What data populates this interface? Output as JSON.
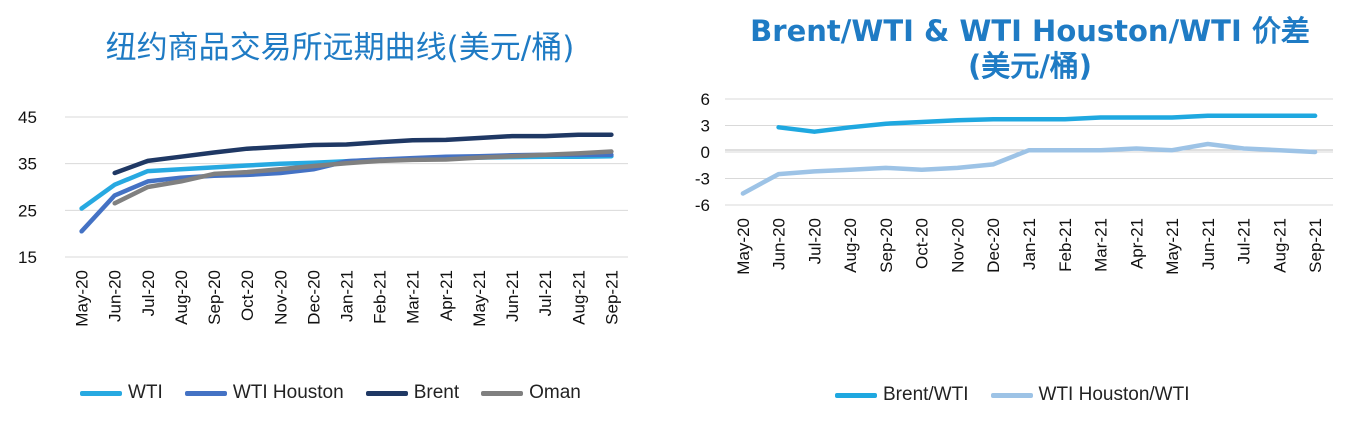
{
  "charts": {
    "left": {
      "title": "纽约商品交易所远期曲线(美元/桶)"
    },
    "right": {
      "title": "Brent/WTI & WTI Houston/WTI 价差 (美元/桶)"
    }
  },
  "chart_data": [
    {
      "type": "line",
      "title": "纽约商品交易所远期曲线(美元/桶)",
      "categories": [
        "May-20",
        "Jun-20",
        "Jul-20",
        "Aug-20",
        "Sep-20",
        "Oct-20",
        "Nov-20",
        "Dec-20",
        "Jan-21",
        "Feb-21",
        "Mar-21",
        "Apr-21",
        "May-21",
        "Jun-21",
        "Jul-21",
        "Aug-21",
        "Sep-21"
      ],
      "ylim": [
        15,
        45
      ],
      "yticks": [
        15,
        25,
        35,
        45
      ],
      "grid": true,
      "legend_position": "bottom",
      "series": [
        {
          "name": "WTI",
          "color": "#27a9e1",
          "values": [
            25.4,
            30.5,
            33.4,
            33.8,
            34.2,
            34.6,
            35.0,
            35.2,
            35.5,
            35.8,
            36.0,
            36.2,
            36.3,
            36.4,
            36.5,
            36.5,
            36.6
          ]
        },
        {
          "name": "WTI Houston",
          "color": "#4472c4",
          "values": [
            20.5,
            28.2,
            31.2,
            32.0,
            32.4,
            32.6,
            33.0,
            33.8,
            35.5,
            35.9,
            36.2,
            36.5,
            36.6,
            36.8,
            36.9,
            36.9,
            36.9
          ]
        },
        {
          "name": "Brent",
          "color": "#1f3864",
          "values": [
            null,
            33.0,
            35.6,
            36.5,
            37.4,
            38.2,
            38.6,
            39.0,
            39.1,
            39.6,
            40.0,
            40.1,
            40.5,
            40.9,
            40.9,
            41.2,
            41.2
          ]
        },
        {
          "name": "Oman",
          "color": "#808080",
          "values": [
            null,
            26.5,
            30.0,
            31.2,
            32.8,
            33.2,
            33.8,
            34.5,
            35.1,
            35.6,
            35.8,
            35.9,
            36.3,
            36.6,
            36.9,
            37.2,
            37.6
          ]
        }
      ]
    },
    {
      "type": "line",
      "title": "Brent/WTI & WTI Houston/WTI 价差 (美元/桶)",
      "categories": [
        "May-20",
        "Jun-20",
        "Jul-20",
        "Aug-20",
        "Sep-20",
        "Oct-20",
        "Nov-20",
        "Dec-20",
        "Jan-21",
        "Feb-21",
        "Mar-21",
        "Apr-21",
        "May-21",
        "Jun-21",
        "Jul-21",
        "Aug-21",
        "Sep-21"
      ],
      "ylim": [
        -6,
        6
      ],
      "yticks": [
        6,
        3,
        0,
        -3,
        -6
      ],
      "grid": true,
      "legend_position": "bottom",
      "series": [
        {
          "name": "Brent/WTI",
          "color": "#1fa8e0",
          "values": [
            null,
            2.8,
            2.3,
            2.8,
            3.2,
            3.4,
            3.6,
            3.7,
            3.7,
            3.7,
            3.9,
            3.9,
            3.9,
            4.1,
            4.1,
            4.1,
            4.1
          ]
        },
        {
          "name": "WTI Houston/WTI",
          "color": "#9dc3e6",
          "values": [
            -4.7,
            -2.5,
            -2.2,
            -2.0,
            -1.8,
            -2.0,
            -1.8,
            -1.4,
            0.2,
            0.2,
            0.2,
            0.4,
            0.2,
            0.9,
            0.4,
            0.2,
            0.0
          ]
        }
      ]
    }
  ]
}
